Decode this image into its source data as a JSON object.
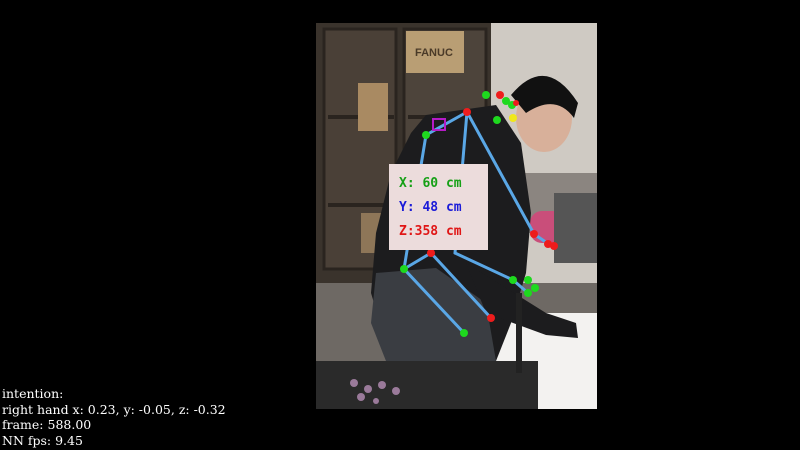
{
  "colors": {
    "background": "#000000",
    "skeleton_line": "#5aa7e6",
    "joint_green": "#1ed91e",
    "joint_red": "#ee1c1c",
    "joint_yellow": "#f0e81a",
    "target_marker": "#b51bc7",
    "label_x": "#16a016",
    "label_y": "#1b1bd8",
    "label_z": "#e01616",
    "overlay_text": "#ffffff"
  },
  "icons": {
    "target_marker": "purple-square-marker-icon"
  },
  "scene": {
    "box_label": "FANUC"
  },
  "position_label": {
    "x": "X: 60 cm",
    "y": "Y: 48 cm",
    "z": "Z:358 cm"
  },
  "overlay": {
    "intention": "intention:",
    "right_hand": "right hand x: 0.23, y: -0.05, z: -0.32",
    "frame": "frame: 588.00",
    "fps": "NN fps: 9.45"
  }
}
